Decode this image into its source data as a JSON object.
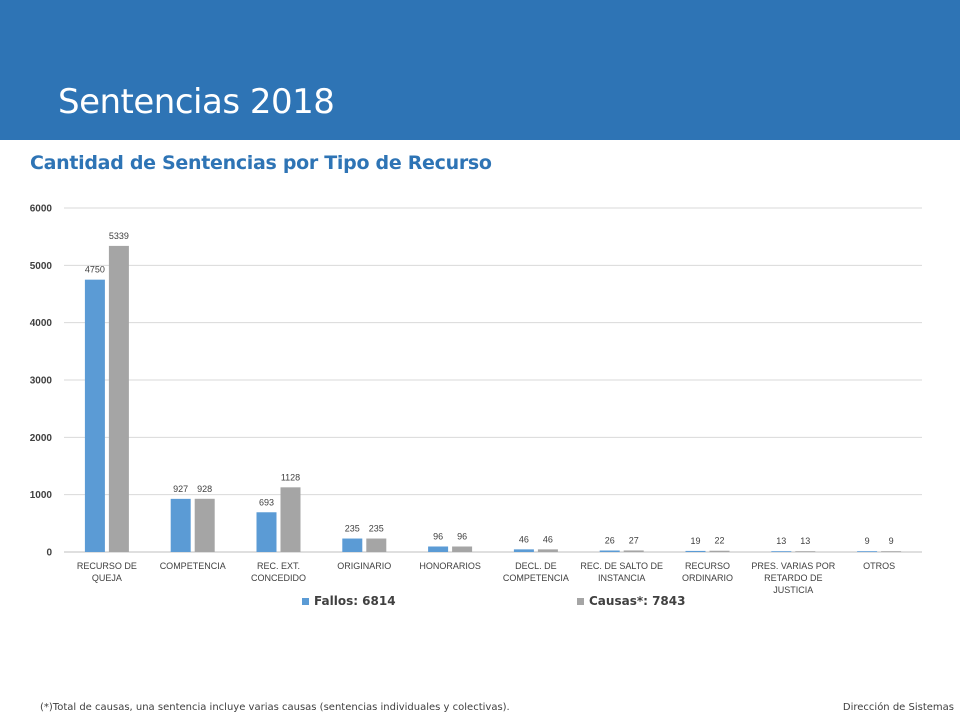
{
  "header": {
    "title": "Sentencias 2018",
    "bg_color": "#2E74B5"
  },
  "chart_data": {
    "type": "bar",
    "title": "Cantidad de Sentencias por Tipo de Recurso",
    "categories": [
      [
        "RECURSO DE",
        "QUEJA"
      ],
      [
        "COMPETENCIA"
      ],
      [
        "REC. EXT.",
        "CONCEDIDO"
      ],
      [
        "ORIGINARIO"
      ],
      [
        "HONORARIOS"
      ],
      [
        "DECL. DE",
        "COMPETENCIA"
      ],
      [
        "REC. DE SALTO DE",
        "INSTANCIA"
      ],
      [
        "RECURSO",
        "ORDINARIO"
      ],
      [
        "PRES. VARIAS POR",
        "RETARDO DE",
        "JUSTICIA"
      ],
      [
        "OTROS"
      ]
    ],
    "series": [
      {
        "name": "Fallos: 6814",
        "color": "#5B9BD5",
        "values": [
          4750,
          927,
          693,
          235,
          96,
          46,
          26,
          19,
          13,
          9
        ]
      },
      {
        "name": "Causas*: 7843",
        "color": "#A5A5A5",
        "values": [
          5339,
          928,
          1128,
          235,
          96,
          46,
          27,
          22,
          13,
          9
        ]
      }
    ],
    "ylim": [
      0,
      6000
    ],
    "yticks": [
      0,
      1000,
      2000,
      3000,
      4000,
      5000,
      6000
    ],
    "grid": true,
    "legend_position": "bottom"
  },
  "footer": {
    "note": "(*)Total de causas, una sentencia incluye varias causas (sentencias individuales y colectivas).",
    "right": "Dirección de Sistemas"
  }
}
